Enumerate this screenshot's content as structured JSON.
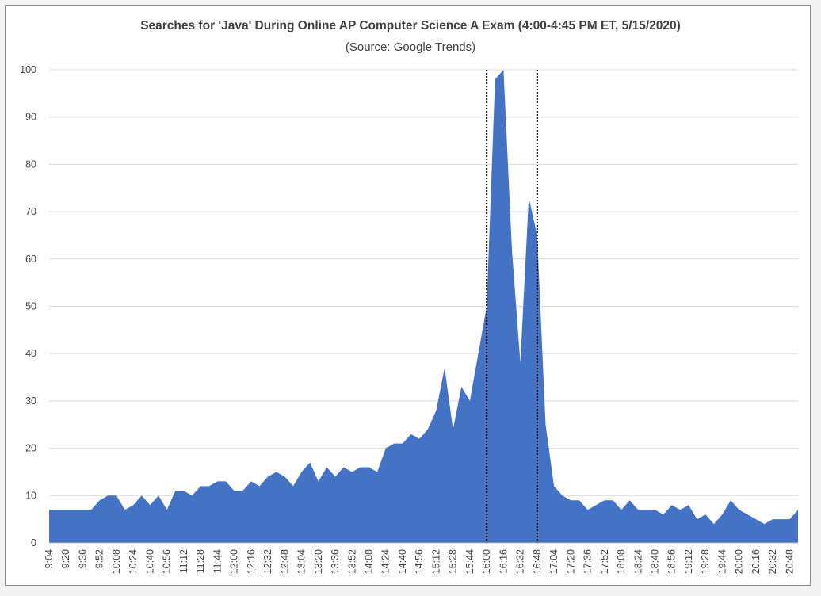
{
  "chart_data": {
    "type": "area",
    "title": "Searches for 'Java' During Online AP Computer Science A Exam (4:00-4:45 PM ET, 5/15/2020)",
    "subtitle": "(Source: Google Trends)",
    "xlabel": "",
    "ylabel": "",
    "ylim": [
      0,
      100
    ],
    "yticks": [
      0,
      10,
      20,
      30,
      40,
      50,
      60,
      70,
      80,
      90,
      100
    ],
    "grid": true,
    "legend": "none",
    "fill_color": "#4472c4",
    "x_start_minutes": 544,
    "x_step_minutes": 8,
    "x_tick_labels": [
      "9:04",
      "9:20",
      "9:36",
      "9:52",
      "10:08",
      "10:24",
      "10:40",
      "10:56",
      "11:12",
      "11:28",
      "11:44",
      "12:00",
      "12:16",
      "12:32",
      "12:48",
      "13:04",
      "13:20",
      "13:36",
      "13:52",
      "14:08",
      "14:24",
      "14:40",
      "14:56",
      "15:12",
      "15:28",
      "15:44",
      "16:00",
      "16:16",
      "16:32",
      "16:48",
      "17:04",
      "17:20",
      "17:36",
      "17:52",
      "18:08",
      "18:24",
      "18:40",
      "18:56",
      "19:12",
      "19:28",
      "19:44",
      "20:00",
      "20:16",
      "20:32",
      "20:48"
    ],
    "vlines": [
      "16:00",
      "16:48"
    ],
    "series": [
      {
        "values": [
          7,
          7,
          7,
          7,
          7,
          7,
          9,
          10,
          10,
          7,
          8,
          10,
          8,
          10,
          7,
          11,
          11,
          10,
          12,
          12,
          13,
          13,
          11,
          11,
          13,
          12,
          14,
          15,
          14,
          12,
          15,
          17,
          13,
          16,
          14,
          16,
          15,
          16,
          16,
          15,
          20,
          21,
          21,
          23,
          22,
          24,
          28,
          37,
          24,
          33,
          30,
          40,
          50,
          98,
          100,
          62,
          38,
          73,
          65,
          25,
          12,
          10,
          9,
          9,
          7,
          8,
          9,
          9,
          7,
          9,
          7,
          7,
          7,
          6,
          8,
          7,
          8,
          5,
          6,
          4,
          6,
          9,
          7,
          6,
          5,
          4,
          5,
          5,
          5,
          7
        ]
      }
    ]
  }
}
